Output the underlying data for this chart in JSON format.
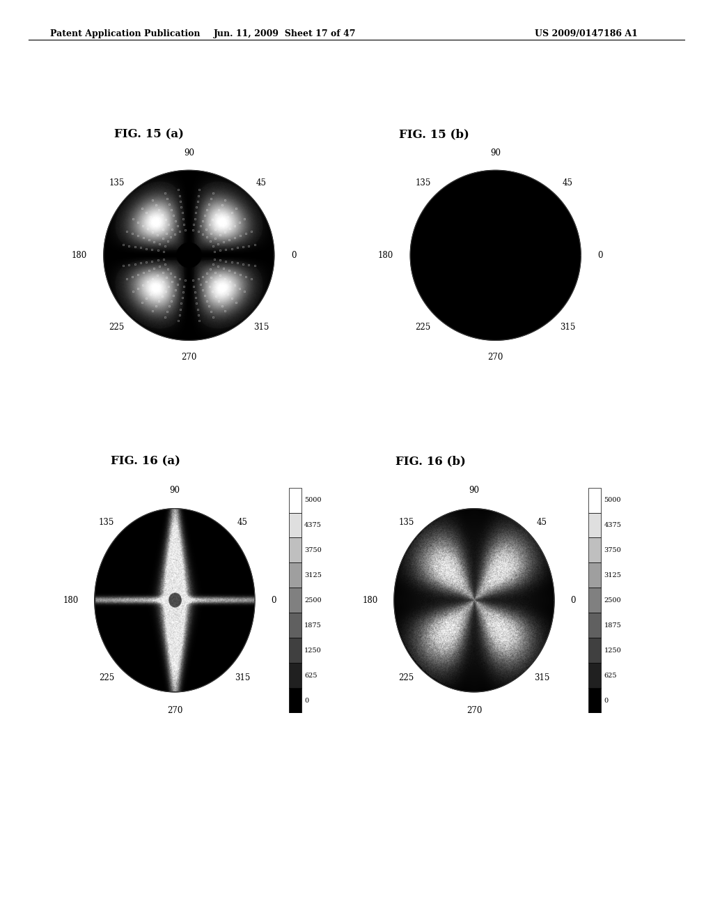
{
  "header_left": "Patent Application Publication",
  "header_mid": "Jun. 11, 2009  Sheet 17 of 47",
  "header_right": "US 2009/0147186 A1",
  "fig15a_title": "FIG. 15 (a)",
  "fig15b_title": "FIG. 15 (b)",
  "fig16a_title": "FIG. 16 (a)",
  "fig16b_title": "FIG. 16 (b)",
  "colorbar_labels": [
    "5000",
    "4375",
    "3750",
    "3125",
    "2500",
    "1875",
    "1250",
    "625",
    "0"
  ],
  "colorbar_values": [
    5000,
    4375,
    3750,
    3125,
    2500,
    1875,
    1250,
    625,
    0
  ],
  "angle_labels_deg": [
    90,
    45,
    0,
    315,
    270,
    225,
    180,
    135
  ],
  "angle_labels_str": [
    "90",
    "45",
    "0",
    "315",
    "270",
    "225",
    "180",
    "135"
  ]
}
